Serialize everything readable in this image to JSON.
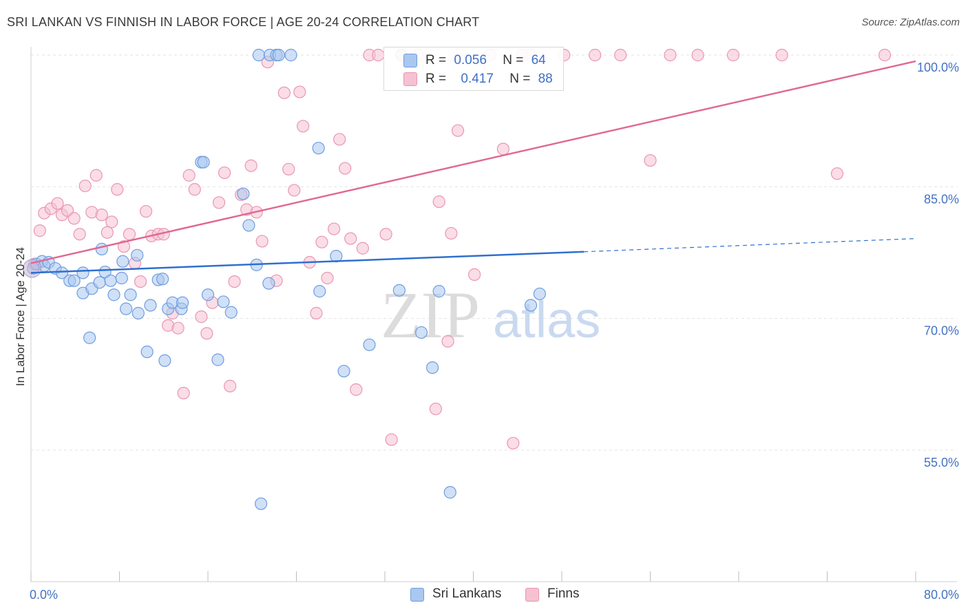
{
  "header": {
    "title": "SRI LANKAN VS FINNISH IN LABOR FORCE | AGE 20-24 CORRELATION CHART",
    "source": "Source: ZipAtlas.com"
  },
  "legend": {
    "r_label": "R =",
    "n_label": "N =",
    "rows": [
      {
        "r": "0.056",
        "n": "64"
      },
      {
        "r": "0.417",
        "n": "88"
      }
    ]
  },
  "watermark": {
    "zip": "ZIP",
    "atlas": "atlas"
  },
  "colors": {
    "blue_fill": "#aac7ef",
    "blue_stroke": "#6d9de0",
    "blue_line": "#2f6fcf",
    "pink_fill": "#f6c1d1",
    "pink_stroke": "#e996b2",
    "pink_line": "#e06894",
    "tick_label": "#4472c4",
    "grid": "#e3e3e3"
  },
  "chart_data": {
    "type": "scatter",
    "title": "SRI LANKAN VS FINNISH IN LABOR FORCE | AGE 20-24 CORRELATION CHART",
    "ylabel": "In Labor Force | Age 20-24",
    "xlabel": "",
    "xlim": [
      0,
      80
    ],
    "ylim": [
      40,
      101
    ],
    "x_tick_labels": [
      "0.0%",
      "80.0%"
    ],
    "y_ticks": [
      55,
      70,
      85,
      100
    ],
    "y_tick_labels": [
      "55.0%",
      "70.0%",
      "85.0%",
      "100.0%"
    ],
    "grid": true,
    "legend_position": "top-center",
    "series": [
      {
        "name": "Sri Lankans",
        "color": "#aac7ef",
        "stats": {
          "R": 0.056,
          "N": 64
        },
        "trend": {
          "x0": 0,
          "y0": 75.2,
          "x1": 50,
          "y1": 77.6,
          "dashed_to_x": 80,
          "dashed_y1": 79.1
        },
        "points": [
          [
            0.2,
            75.7
          ],
          [
            0.5,
            76.2
          ],
          [
            1.0,
            76.5
          ],
          [
            1.2,
            76.0
          ],
          [
            1.6,
            76.4
          ],
          [
            2.2,
            75.7
          ],
          [
            2.8,
            75.2
          ],
          [
            3.5,
            74.3
          ],
          [
            3.9,
            74.3
          ],
          [
            4.7,
            75.2
          ],
          [
            4.7,
            72.9
          ],
          [
            5.3,
            67.8
          ],
          [
            5.5,
            73.4
          ],
          [
            6.2,
            74.1
          ],
          [
            6.4,
            77.9
          ],
          [
            6.7,
            75.3
          ],
          [
            7.2,
            74.3
          ],
          [
            7.5,
            72.7
          ],
          [
            8.2,
            74.6
          ],
          [
            8.3,
            76.5
          ],
          [
            8.6,
            71.1
          ],
          [
            9.0,
            72.7
          ],
          [
            9.6,
            77.2
          ],
          [
            9.7,
            70.6
          ],
          [
            10.5,
            66.2
          ],
          [
            10.8,
            71.5
          ],
          [
            11.5,
            74.4
          ],
          [
            11.9,
            74.5
          ],
          [
            12.1,
            65.2
          ],
          [
            12.4,
            71.1
          ],
          [
            12.8,
            71.8
          ],
          [
            13.6,
            71.1
          ],
          [
            13.7,
            71.8
          ],
          [
            15.4,
            87.8
          ],
          [
            15.6,
            87.8
          ],
          [
            16.0,
            72.7
          ],
          [
            16.9,
            65.3
          ],
          [
            17.4,
            71.9
          ],
          [
            18.1,
            70.7
          ],
          [
            19.2,
            84.2
          ],
          [
            19.7,
            80.6
          ],
          [
            20.4,
            76.1
          ],
          [
            20.6,
            100
          ],
          [
            20.8,
            48.9
          ],
          [
            21.5,
            74.0
          ],
          [
            21.6,
            100
          ],
          [
            22.2,
            100
          ],
          [
            22.4,
            100
          ],
          [
            23.5,
            100
          ],
          [
            26.0,
            89.4
          ],
          [
            26.1,
            73.1
          ],
          [
            27.6,
            77.1
          ],
          [
            28.3,
            64.0
          ],
          [
            30.6,
            67.0
          ],
          [
            33.3,
            73.2
          ],
          [
            33.5,
            100
          ],
          [
            35.3,
            68.4
          ],
          [
            36.3,
            64.4
          ],
          [
            36.9,
            73.1
          ],
          [
            37.9,
            50.2
          ],
          [
            45.2,
            71.5
          ],
          [
            46.0,
            72.8
          ]
        ]
      },
      {
        "name": "Finns",
        "color": "#f6c1d1",
        "stats": {
          "R": 0.417,
          "N": 88
        },
        "trend": {
          "x0": 0,
          "y0": 76.3,
          "x1": 80,
          "y1": 99.3
        },
        "points": [
          [
            0.3,
            76.2
          ],
          [
            0.8,
            80.0
          ],
          [
            1.2,
            82.0
          ],
          [
            1.8,
            82.5
          ],
          [
            2.4,
            83.1
          ],
          [
            2.8,
            81.8
          ],
          [
            3.3,
            82.3
          ],
          [
            3.9,
            81.4
          ],
          [
            4.4,
            79.6
          ],
          [
            4.9,
            85.1
          ],
          [
            5.5,
            82.1
          ],
          [
            5.9,
            86.3
          ],
          [
            6.4,
            81.8
          ],
          [
            6.9,
            79.8
          ],
          [
            7.3,
            81.0
          ],
          [
            7.8,
            84.7
          ],
          [
            8.4,
            78.2
          ],
          [
            8.9,
            79.6
          ],
          [
            9.4,
            76.3
          ],
          [
            9.9,
            74.2
          ],
          [
            10.4,
            82.2
          ],
          [
            10.9,
            79.4
          ],
          [
            11.5,
            79.6
          ],
          [
            12.0,
            79.6
          ],
          [
            12.4,
            69.2
          ],
          [
            12.8,
            70.6
          ],
          [
            13.3,
            68.9
          ],
          [
            13.8,
            61.5
          ],
          [
            14.3,
            86.3
          ],
          [
            14.8,
            84.7
          ],
          [
            15.4,
            70.2
          ],
          [
            15.9,
            68.3
          ],
          [
            16.4,
            71.8
          ],
          [
            17.0,
            83.2
          ],
          [
            17.5,
            86.6
          ],
          [
            18.0,
            62.3
          ],
          [
            18.4,
            74.2
          ],
          [
            19.0,
            84.1
          ],
          [
            19.5,
            82.4
          ],
          [
            19.9,
            87.4
          ],
          [
            20.4,
            82.1
          ],
          [
            20.9,
            78.8
          ],
          [
            21.4,
            99.2
          ],
          [
            22.2,
            74.3
          ],
          [
            22.9,
            95.7
          ],
          [
            23.3,
            87.0
          ],
          [
            23.8,
            84.6
          ],
          [
            24.3,
            95.8
          ],
          [
            24.6,
            91.9
          ],
          [
            25.2,
            76.4
          ],
          [
            25.8,
            70.6
          ],
          [
            26.3,
            78.7
          ],
          [
            26.8,
            74.6
          ],
          [
            27.4,
            80.2
          ],
          [
            27.9,
            90.4
          ],
          [
            28.4,
            87.1
          ],
          [
            28.9,
            79.1
          ],
          [
            29.4,
            61.9
          ],
          [
            30.0,
            78.0
          ],
          [
            30.6,
            100
          ],
          [
            31.4,
            100
          ],
          [
            32.1,
            79.6
          ],
          [
            32.6,
            56.2
          ],
          [
            33.5,
            100
          ],
          [
            35.0,
            100
          ],
          [
            36.6,
            59.7
          ],
          [
            36.9,
            83.3
          ],
          [
            37.7,
            67.4
          ],
          [
            38.0,
            79.7
          ],
          [
            38.6,
            91.4
          ],
          [
            40.1,
            75.0
          ],
          [
            41.5,
            100
          ],
          [
            42.7,
            89.3
          ],
          [
            43.6,
            55.8
          ],
          [
            44.4,
            100
          ],
          [
            45.2,
            100
          ],
          [
            48.2,
            100
          ],
          [
            51.0,
            100
          ],
          [
            53.3,
            100
          ],
          [
            56.0,
            88.0
          ],
          [
            57.8,
            100
          ],
          [
            60.3,
            100
          ],
          [
            63.5,
            100
          ],
          [
            67.9,
            100
          ],
          [
            72.9,
            86.5
          ],
          [
            77.2,
            100
          ]
        ]
      }
    ]
  }
}
